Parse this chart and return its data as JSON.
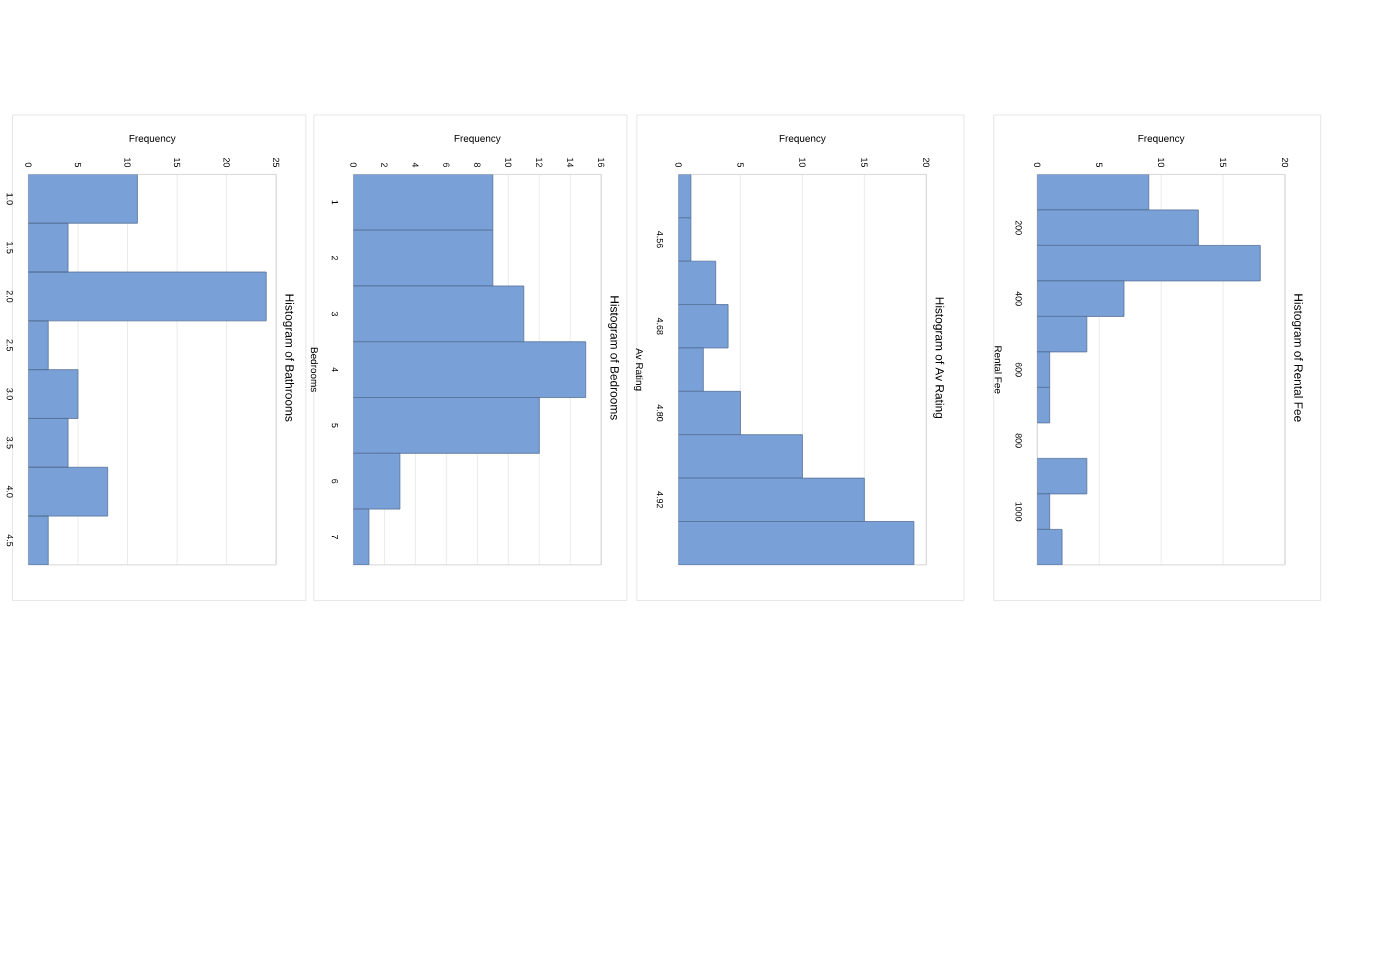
{
  "chart_data": [
    {
      "type": "bar",
      "orientation": "horizontal",
      "title": "Histogram of Bathrooms",
      "xlabel": "Frequency",
      "categories": [
        "1.0",
        "1.5",
        "2.0",
        "2.5",
        "3.0",
        "3.5",
        "4.0",
        "4.5"
      ],
      "values": [
        11,
        4,
        24,
        2,
        5,
        4,
        8,
        2
      ],
      "color": "#7aa0d8",
      "xlim": [
        0,
        25
      ],
      "xticks": [
        0,
        5,
        10,
        15,
        20,
        25
      ],
      "grid": "x"
    },
    {
      "type": "bar",
      "orientation": "horizontal",
      "title": "Histogram of Bedrooms",
      "xlabel": "Frequency",
      "ylabel": "Bedrooms",
      "categories": [
        "1",
        "2",
        "3",
        "4",
        "5",
        "6",
        "7"
      ],
      "values": [
        9,
        9,
        11,
        15,
        12,
        3,
        1
      ],
      "color": "#7aa0d8",
      "xlim": [
        0,
        16
      ],
      "xticks": [
        0,
        2,
        4,
        6,
        8,
        10,
        12,
        14,
        16
      ],
      "grid": "x"
    },
    {
      "type": "bar",
      "orientation": "horizontal",
      "title": "Histogram of Av Rating",
      "xlabel": "Frequency",
      "ylabel": "Av Rating",
      "categories": [
        null,
        "4.56",
        null,
        "4.68",
        null,
        "4.80",
        null,
        "4.92",
        null
      ],
      "values": [
        1,
        1,
        3,
        4,
        2,
        5,
        10,
        15,
        19
      ],
      "color": "#7aa0d8",
      "xlim": [
        0,
        20
      ],
      "xticks": [
        0,
        5,
        10,
        15,
        20
      ],
      "grid": "x"
    },
    {
      "type": "bar",
      "orientation": "horizontal",
      "title": "Histogram of Rental Fee",
      "xlabel": "Frequency",
      "ylabel": "Rental Fee",
      "categories": [
        null,
        "200",
        null,
        "400",
        null,
        "600",
        null,
        "800",
        null,
        "1000",
        null
      ],
      "values": [
        9,
        13,
        18,
        7,
        4,
        1,
        1,
        0,
        4,
        1,
        2
      ],
      "color": "#7aa0d8",
      "xlim": [
        0,
        20
      ],
      "xticks": [
        0,
        5,
        10,
        15,
        20
      ],
      "grid": "x"
    }
  ]
}
